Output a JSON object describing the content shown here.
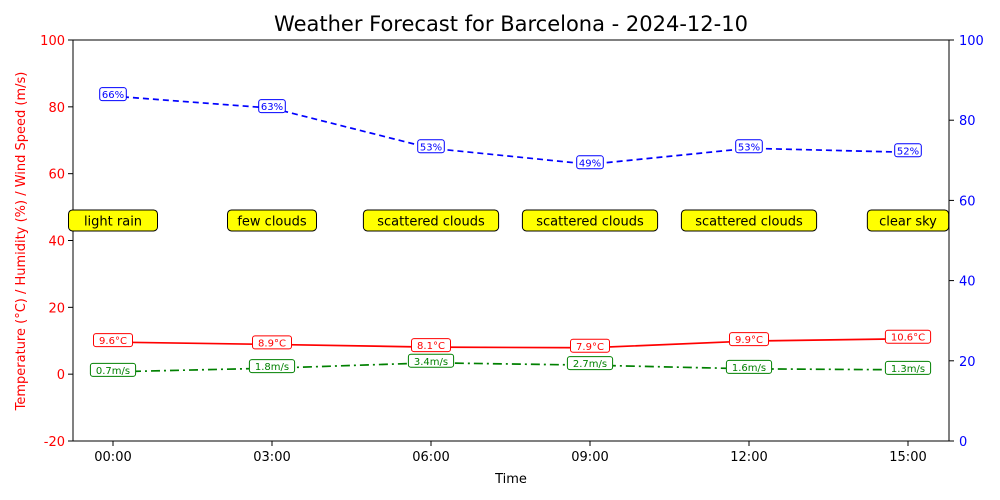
{
  "chart_data": {
    "type": "line",
    "title": "Weather Forecast for Barcelona - 2024-12-10",
    "xlabel": "Time",
    "ylabel_left": "Temperature (°C) / Humidity (%) / Wind Speed (m/s)",
    "left_ylim": [
      -20,
      100
    ],
    "left_yticks": [
      -20,
      0,
      20,
      40,
      60,
      80,
      100
    ],
    "right_ylim": [
      0,
      100
    ],
    "right_yticks": [
      0,
      20,
      40,
      60,
      80,
      100
    ],
    "categories": [
      "00:00",
      "03:00",
      "06:00",
      "09:00",
      "12:00",
      "15:00"
    ],
    "series": [
      {
        "key": "temperature",
        "color": "#ff0000",
        "style": "solid",
        "values": [
          9.6,
          8.9,
          8.1,
          7.9,
          9.9,
          10.6
        ],
        "labels": [
          "9.6°C",
          "8.9°C",
          "8.1°C",
          "7.9°C",
          "9.9°C",
          "10.6°C"
        ]
      },
      {
        "key": "humidity",
        "color": "#0000ff",
        "style": "dashed",
        "values": [
          66,
          63,
          53,
          49,
          53,
          52
        ],
        "labels": [
          "66%",
          "63%",
          "53%",
          "49%",
          "53%",
          "52%"
        ]
      },
      {
        "key": "wind_speed",
        "color": "#008000",
        "style": "dashdot",
        "values": [
          0.7,
          1.8,
          3.4,
          2.7,
          1.6,
          1.3
        ],
        "labels": [
          "0.7m/s",
          "1.8m/s",
          "3.4m/s",
          "2.7m/s",
          "1.6m/s",
          "1.3m/s"
        ]
      }
    ],
    "conditions": [
      "light rain",
      "few clouds",
      "scattered clouds",
      "scattered clouds",
      "scattered clouds",
      "clear sky"
    ],
    "condition_level": 46,
    "colors": {
      "left_axis": "#ff0000",
      "right_axis": "#0000ff",
      "condition_box": "#ffff00"
    },
    "grid": false,
    "legend": "none"
  }
}
